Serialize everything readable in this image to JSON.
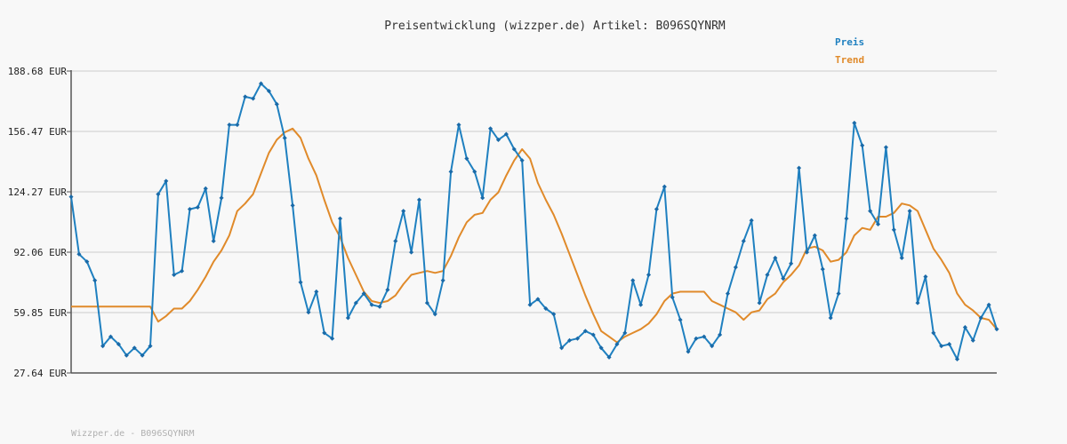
{
  "chart_data": {
    "type": "line",
    "title": "Preisentwicklung (wizzper.de) Artikel: B096SQYNRM",
    "xlabel": "",
    "ylabel": "",
    "y_ticks": [
      "188.68 EUR",
      "156.47 EUR",
      "124.27 EUR",
      "92.06 EUR",
      "59.85 EUR",
      "27.64 EUR"
    ],
    "ylim": [
      27.64,
      188.68
    ],
    "grid": true,
    "legend_position": "top-right",
    "series": [
      {
        "name": "Preis",
        "color": "#1f80c0",
        "values": [
          121.6,
          91,
          87,
          77,
          42,
          47,
          43,
          37,
          41,
          37,
          42,
          123,
          130,
          80,
          82,
          115,
          116,
          126,
          98,
          121,
          160,
          160,
          175,
          174,
          182,
          178,
          171,
          153,
          117,
          76,
          60,
          71,
          49,
          46,
          110,
          57,
          65,
          70,
          64,
          63,
          72,
          98,
          114,
          92,
          120,
          65,
          59,
          77,
          135,
          160,
          142,
          135,
          121,
          158,
          152,
          155,
          147,
          141,
          64,
          67,
          62,
          59,
          41,
          45,
          46,
          50,
          48,
          41,
          36,
          43,
          49,
          77,
          64,
          80,
          115,
          127,
          68,
          56,
          39,
          46,
          47,
          42,
          48,
          70,
          84,
          98,
          109,
          65,
          80,
          89,
          78,
          86,
          137,
          92,
          101,
          83,
          57,
          70,
          110,
          161,
          149,
          114,
          107,
          148,
          104,
          89,
          114,
          65,
          79,
          49,
          42,
          43,
          35,
          52,
          45,
          57,
          64,
          51
        ],
        "trend_name_hidden": false
      },
      {
        "name": "Trend",
        "color": "#e08a2a",
        "values": [
          63,
          63,
          63,
          63,
          63,
          63,
          63,
          63,
          63,
          63,
          63,
          55,
          58,
          62,
          62,
          66,
          72,
          79,
          87,
          93,
          101,
          114,
          118,
          123,
          134,
          145,
          152,
          156,
          158,
          153,
          142,
          133,
          120,
          108,
          100,
          89,
          80,
          71,
          66,
          65,
          66,
          69,
          75,
          80,
          81,
          82,
          81,
          82,
          90,
          100,
          108,
          112,
          113,
          120,
          124,
          133,
          141,
          147,
          142,
          129,
          120,
          112,
          102,
          91,
          80,
          69,
          59,
          50,
          47,
          44,
          47,
          49,
          51,
          54,
          59,
          66,
          70,
          71,
          71,
          71,
          71,
          66,
          64,
          62,
          60,
          56,
          60,
          61,
          67,
          70,
          76,
          80,
          85,
          94,
          95,
          93,
          87,
          88,
          92,
          101,
          105,
          104,
          111,
          111,
          113,
          118,
          117,
          114,
          104,
          94,
          88,
          81,
          70,
          64,
          61,
          57,
          56,
          51
        ]
      }
    ],
    "legend": {
      "preis": "Preis",
      "trend": "Trend"
    }
  },
  "footer": {
    "text": "Wizzper.de - B096SQYNRM"
  }
}
